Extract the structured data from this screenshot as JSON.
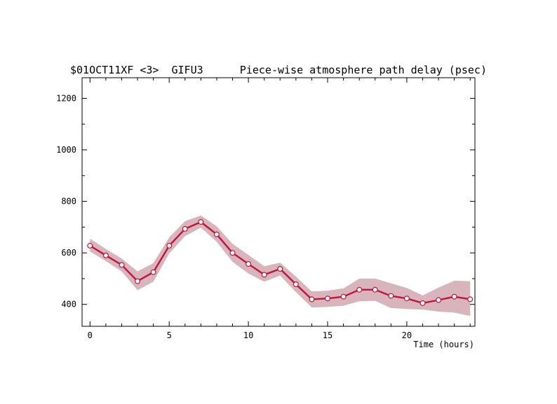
{
  "chart_data": {
    "type": "line",
    "title_left": "$01OCT11XF <3>  GIFU3",
    "title_right": "Piece-wise atmosphere path delay (psec)",
    "xlabel": "Time (hours)",
    "ylabel": "",
    "xlim": [
      -0.5,
      24.3
    ],
    "ylim": [
      315,
      1280
    ],
    "xticks": [
      0,
      5,
      10,
      15,
      20
    ],
    "yticks": [
      400,
      600,
      800,
      1000,
      1200
    ],
    "grid": false,
    "series": [
      {
        "x": [
          0,
          1,
          2,
          3,
          4,
          5,
          6,
          7,
          8,
          9,
          10,
          11,
          12,
          13,
          14,
          15,
          16,
          17,
          18,
          19,
          20,
          21,
          22,
          23,
          24
        ],
        "values": [
          628,
          590,
          553,
          490,
          525,
          628,
          693,
          720,
          672,
          600,
          557,
          515,
          538,
          478,
          420,
          423,
          430,
          457,
          457,
          433,
          423,
          405,
          417,
          430,
          420
        ],
        "band_upper": [
          655,
          615,
          578,
          528,
          560,
          660,
          723,
          745,
          703,
          635,
          592,
          548,
          562,
          508,
          450,
          453,
          462,
          500,
          500,
          482,
          464,
          435,
          465,
          492,
          490
        ],
        "band_lower": [
          605,
          568,
          528,
          455,
          488,
          598,
          665,
          698,
          643,
          565,
          520,
          488,
          512,
          448,
          388,
          390,
          395,
          412,
          414,
          386,
          382,
          380,
          372,
          368,
          355
        ]
      }
    ],
    "colors": {
      "line": "#c0143c",
      "band": "#d8b4bc",
      "marker_fill": "#ffffff"
    }
  }
}
